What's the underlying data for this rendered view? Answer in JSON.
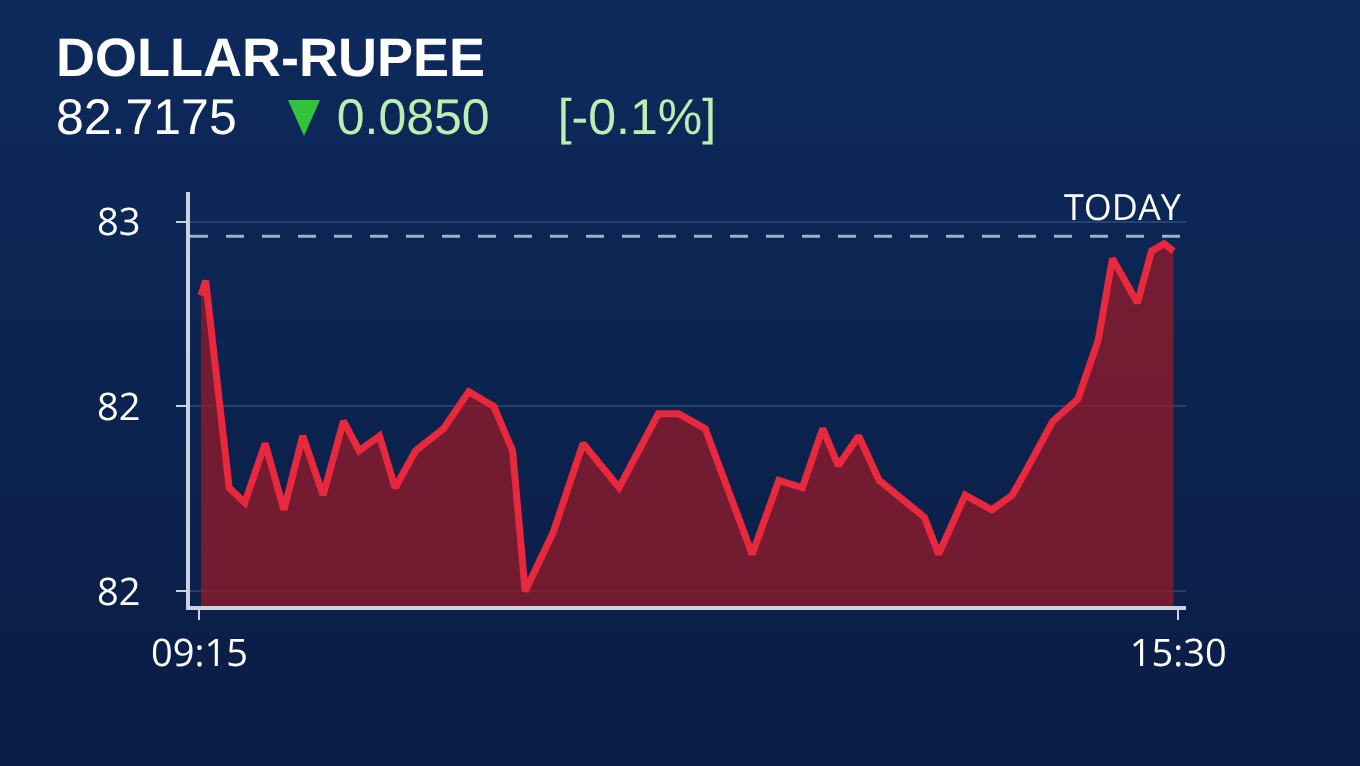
{
  "chart_data": {
    "type": "area",
    "title": "DOLLAR-RUPEE",
    "annotations": [
      "82.7175",
      "0.0850",
      "[-0.1%]"
    ],
    "x": [
      9.26,
      9.29,
      9.44,
      9.54,
      9.67,
      9.79,
      9.91,
      10.04,
      10.17,
      10.27,
      10.4,
      10.5,
      10.63,
      10.81,
      10.97,
      11.13,
      11.25,
      11.33,
      11.51,
      11.7,
      11.93,
      12.18,
      12.31,
      12.48,
      12.78,
      12.95,
      13.1,
      13.23,
      13.33,
      13.46,
      13.59,
      13.88,
      13.97,
      14.14,
      14.31,
      14.44,
      14.52,
      14.7,
      14.86,
      14.99,
      15.08,
      15.24,
      15.33,
      15.41,
      15.47
    ],
    "series": [
      {
        "color": "#e8283c",
        "values": [
          82.65,
          82.67,
          82.39,
          82.37,
          82.45,
          82.36,
          82.46,
          82.38,
          82.48,
          82.44,
          82.46,
          82.39,
          82.44,
          82.47,
          82.52,
          82.5,
          82.44,
          82.25,
          82.33,
          82.45,
          82.39,
          82.49,
          82.49,
          82.47,
          82.3,
          82.4,
          82.39,
          82.47,
          82.42,
          82.46,
          82.4,
          82.35,
          82.3,
          82.38,
          82.36,
          82.38,
          82.41,
          82.48,
          82.51,
          82.59,
          82.7,
          82.64,
          82.71,
          82.72,
          82.71
        ]
      }
    ],
    "xlim": [
      9.19,
      15.55
    ],
    "xticks": [
      {
        "value": 9.25,
        "label": "09:15"
      },
      {
        "value": 15.5,
        "label": "15:30"
      }
    ],
    "ylim": [
      82.23,
      82.79
    ],
    "yticks": [
      {
        "value": 82.75,
        "label": "83"
      },
      {
        "value": 82.5,
        "label": "82"
      },
      {
        "value": 82.25,
        "label": "82"
      }
    ],
    "ref_lines": [
      {
        "axis": "y",
        "value": 82.73,
        "label": "TODAY",
        "color": "#9fb0c8",
        "line_style": "dashed"
      }
    ],
    "grid": "y",
    "marker": "none",
    "line_style": "solid"
  }
}
